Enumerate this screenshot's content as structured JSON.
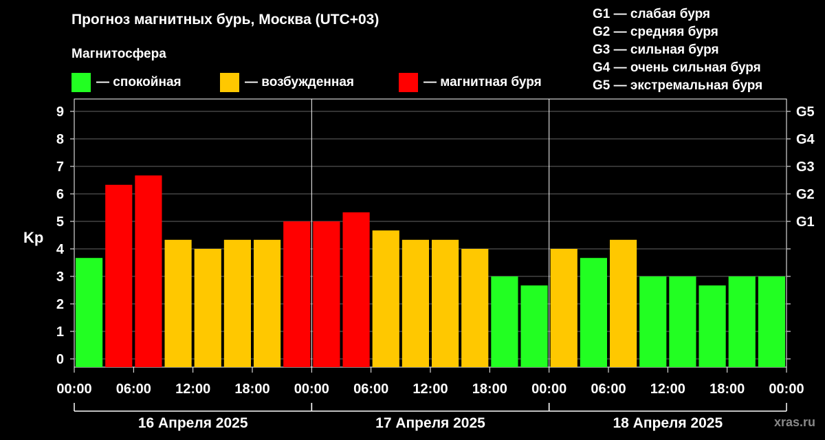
{
  "title": "Прогноз магнитных бурь, Москва (UTC+03)",
  "subtitle": "Магнитосфера",
  "legend": [
    {
      "label": "— спокойная",
      "color": "#22ff22"
    },
    {
      "label": "— возбужденная",
      "color": "#ffc800"
    },
    {
      "label": "— магнитная буря",
      "color": "#ff0000"
    }
  ],
  "g_legend": [
    "G1 — слабая буря",
    "G2 — средняя буря",
    "G3 — сильная буря",
    "G4 — очень сильная буря",
    "G5 — экстремальная буря"
  ],
  "watermark": "xras.ru",
  "chart_data": {
    "type": "bar",
    "title": "Прогноз магнитных бурь, Москва (UTC+03)",
    "ylabel": "Kp",
    "ylim": [
      0,
      9
    ],
    "yticks": [
      "0",
      "1",
      "2",
      "3",
      "4",
      "5",
      "6",
      "7",
      "8",
      "9"
    ],
    "right_axis": [
      {
        "label": "G1",
        "kp": 5
      },
      {
        "label": "G2",
        "kp": 6
      },
      {
        "label": "G3",
        "kp": 7
      },
      {
        "label": "G4",
        "kp": 8
      },
      {
        "label": "G5",
        "kp": 9
      }
    ],
    "xtick_labels": [
      "00:00",
      "06:00",
      "12:00",
      "18:00",
      "00:00",
      "06:00",
      "12:00",
      "18:00",
      "00:00",
      "06:00",
      "12:00",
      "18:00",
      "00:00"
    ],
    "days": [
      "16 Апреля 2025",
      "17 Апреля 2025",
      "18 Апреля 2025"
    ],
    "levels": {
      "quiet": "#22ff22",
      "active": "#ffc800",
      "storm": "#ff0000"
    },
    "values": [
      3.67,
      6.33,
      6.67,
      4.33,
      4.0,
      4.33,
      4.33,
      5.0,
      5.0,
      5.33,
      4.67,
      4.33,
      4.33,
      4.0,
      3.0,
      2.67,
      4.0,
      3.67,
      4.33,
      3.0,
      3.0,
      2.67,
      3.0,
      3.0
    ],
    "status": [
      "quiet",
      "storm",
      "storm",
      "active",
      "active",
      "active",
      "active",
      "storm",
      "storm",
      "storm",
      "active",
      "active",
      "active",
      "active",
      "quiet",
      "quiet",
      "active",
      "quiet",
      "active",
      "quiet",
      "quiet",
      "quiet",
      "quiet",
      "quiet"
    ],
    "grid": true
  }
}
